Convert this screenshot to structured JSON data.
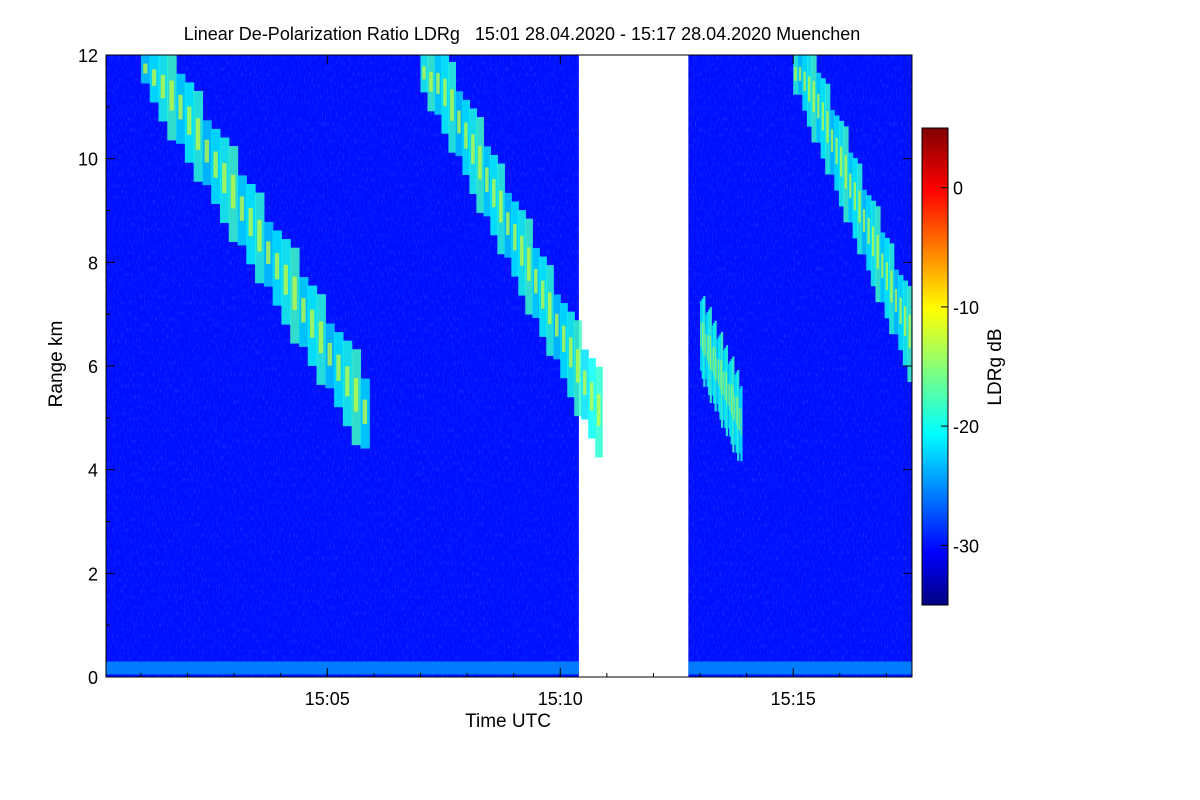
{
  "chart_data": {
    "type": "heatmap",
    "title": "Linear De-Polarization Ratio LDRg   15:01 28.04.2020 - 15:17 28.04.2020 Muenchen",
    "xlabel": "Time UTC",
    "ylabel": "Range km",
    "x_ticks": [
      "15:05",
      "15:10",
      "15:15"
    ],
    "y_ticks": [
      "0",
      "2",
      "4",
      "6",
      "8",
      "10",
      "12"
    ],
    "ylim": [
      0,
      12
    ],
    "colorbar": {
      "label": "LDRg dB",
      "ticks": [
        "0",
        "-10",
        "-20",
        "-30"
      ],
      "range": [
        -35,
        5
      ],
      "colormap": "jet"
    },
    "data_gap": [
      "15:10",
      "15:13"
    ],
    "background_level_db": -30,
    "features": [
      {
        "name": "descending depolarizing layer",
        "start": "15:01",
        "end": "15:05",
        "range_km": [
          12,
          5
        ],
        "ldr_db": -18
      },
      {
        "name": "descending depolarizing layer",
        "start": "15:07",
        "end": "15:10",
        "range_km": [
          12,
          5
        ],
        "ldr_db": -18
      },
      {
        "name": "descending depolarizing layer",
        "start": "15:13",
        "end": "15:13",
        "range_km": [
          6.5,
          4.8
        ],
        "ldr_db": -18
      },
      {
        "name": "descending depolarizing layer",
        "start": "15:15",
        "end": "15:18",
        "range_km": [
          12,
          6.5
        ],
        "ldr_db": -18
      }
    ]
  },
  "colors": {
    "no_signal": "#8f8f8f",
    "jet": [
      "#000080",
      "#0000ff",
      "#00ffff",
      "#ffff00",
      "#ff0000",
      "#800000"
    ]
  }
}
